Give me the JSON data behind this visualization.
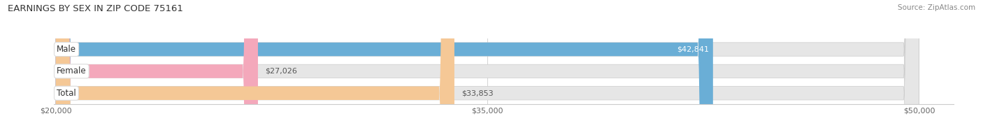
{
  "title": "EARNINGS BY SEX IN ZIP CODE 75161",
  "source": "Source: ZipAtlas.com",
  "categories": [
    "Male",
    "Female",
    "Total"
  ],
  "values": [
    42841,
    27026,
    33853
  ],
  "xmin": 20000,
  "xmax": 50000,
  "bar_colors": [
    "#6aaed6",
    "#f4a8bb",
    "#f5c896"
  ],
  "bar_bg_color": "#e6e6e6",
  "value_labels": [
    "$42,841",
    "$27,026",
    "$33,853"
  ],
  "value_label_inside": [
    true,
    false,
    false
  ],
  "xtick_labels": [
    "$20,000",
    "$35,000",
    "$50,000"
  ],
  "xtick_values": [
    20000,
    35000,
    50000
  ],
  "background_color": "#ffffff",
  "title_fontsize": 9.5,
  "source_fontsize": 7.5,
  "bar_value_fontsize": 8,
  "cat_label_fontsize": 8.5
}
